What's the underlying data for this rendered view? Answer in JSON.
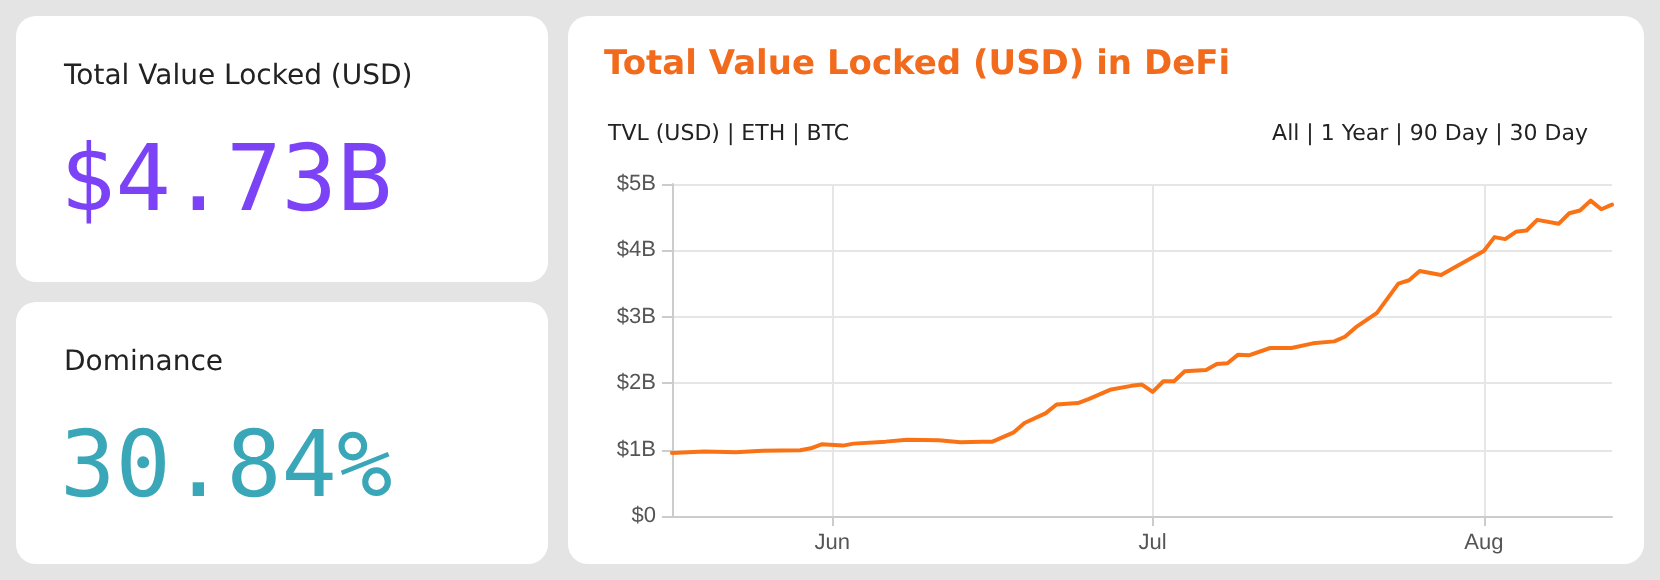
{
  "chart_data": [
    {
      "type": "other",
      "title": "Total Value Locked (USD)",
      "annotations": [
        "$4.73B"
      ],
      "color": "#7b42f6"
    },
    {
      "type": "other",
      "title": "Dominance",
      "annotations": [
        "30.84%"
      ],
      "color": "#3aa7b8"
    },
    {
      "type": "line",
      "title": "Total Value Locked (USD) in DeFi",
      "annotations": [
        "TVL (USD) | ETH | BTC",
        "All | 1 Year | 90 Day | 30 Day"
      ],
      "x": [
        "--05-17",
        "--05-20",
        "--05-23",
        "--05-25",
        "--05-29",
        "--05-30",
        "--05-31",
        "--06-02",
        "--06-03",
        "--06-06",
        "--06-08",
        "--06-11",
        "--06-13",
        "--06-15",
        "--06-16",
        "--06-18",
        "--06-19",
        "--06-21",
        "--06-22",
        "--06-24",
        "--06-25",
        "--06-27",
        "--06-29",
        "--06-30",
        "--07-01",
        "--07-02",
        "--07-03",
        "--07-04",
        "--07-06",
        "--07-07",
        "--07-08",
        "--07-09",
        "--07-10",
        "--07-12",
        "--07-14",
        "--07-16",
        "--07-18",
        "--07-19",
        "--07-20",
        "--07-22",
        "--07-24",
        "--07-25",
        "--07-26",
        "--07-28",
        "--07-29",
        "--08-01",
        "--08-02",
        "--08-03",
        "--08-04",
        "--08-05",
        "--08-06",
        "--08-08",
        "--08-09",
        "--08-10",
        "--08-11",
        "--08-12",
        "--08-13"
      ],
      "series": [
        {
          "color": "#f97316",
          "values": [
            0.95,
            0.97,
            0.96,
            0.98,
            0.99,
            1.02,
            1.08,
            1.06,
            1.09,
            1.12,
            1.15,
            1.14,
            1.11,
            1.12,
            1.12,
            1.26,
            1.4,
            1.55,
            1.68,
            1.7,
            1.76,
            1.9,
            1.96,
            1.98,
            1.87,
            2.03,
            2.03,
            2.18,
            2.2,
            2.29,
            2.3,
            2.43,
            2.42,
            2.53,
            2.53,
            2.6,
            2.63,
            2.7,
            2.84,
            3.06,
            3.5,
            3.55,
            3.69,
            3.63,
            3.72,
            3.99,
            4.2,
            4.17,
            4.28,
            4.3,
            4.46,
            4.4,
            4.56,
            4.6,
            4.75,
            4.62,
            4.69
          ]
        }
      ],
      "xlim": [
        "--05-17",
        "--08-13"
      ],
      "xticks": [
        {
          "value": "--06-01",
          "label": "Jun"
        },
        {
          "value": "--07-01",
          "label": "Jul"
        },
        {
          "value": "--08-01",
          "label": "Aug"
        }
      ],
      "ylim": [
        0,
        5
      ],
      "yticks": [
        {
          "value": 0,
          "label": "$0"
        },
        {
          "value": 1,
          "label": "$1B"
        },
        {
          "value": 2,
          "label": "$2B"
        },
        {
          "value": 3,
          "label": "$3B"
        },
        {
          "value": 4,
          "label": "$4B"
        },
        {
          "value": 5,
          "label": "$5B"
        }
      ],
      "grid": true,
      "marker": "none",
      "line_style": "solid"
    }
  ]
}
